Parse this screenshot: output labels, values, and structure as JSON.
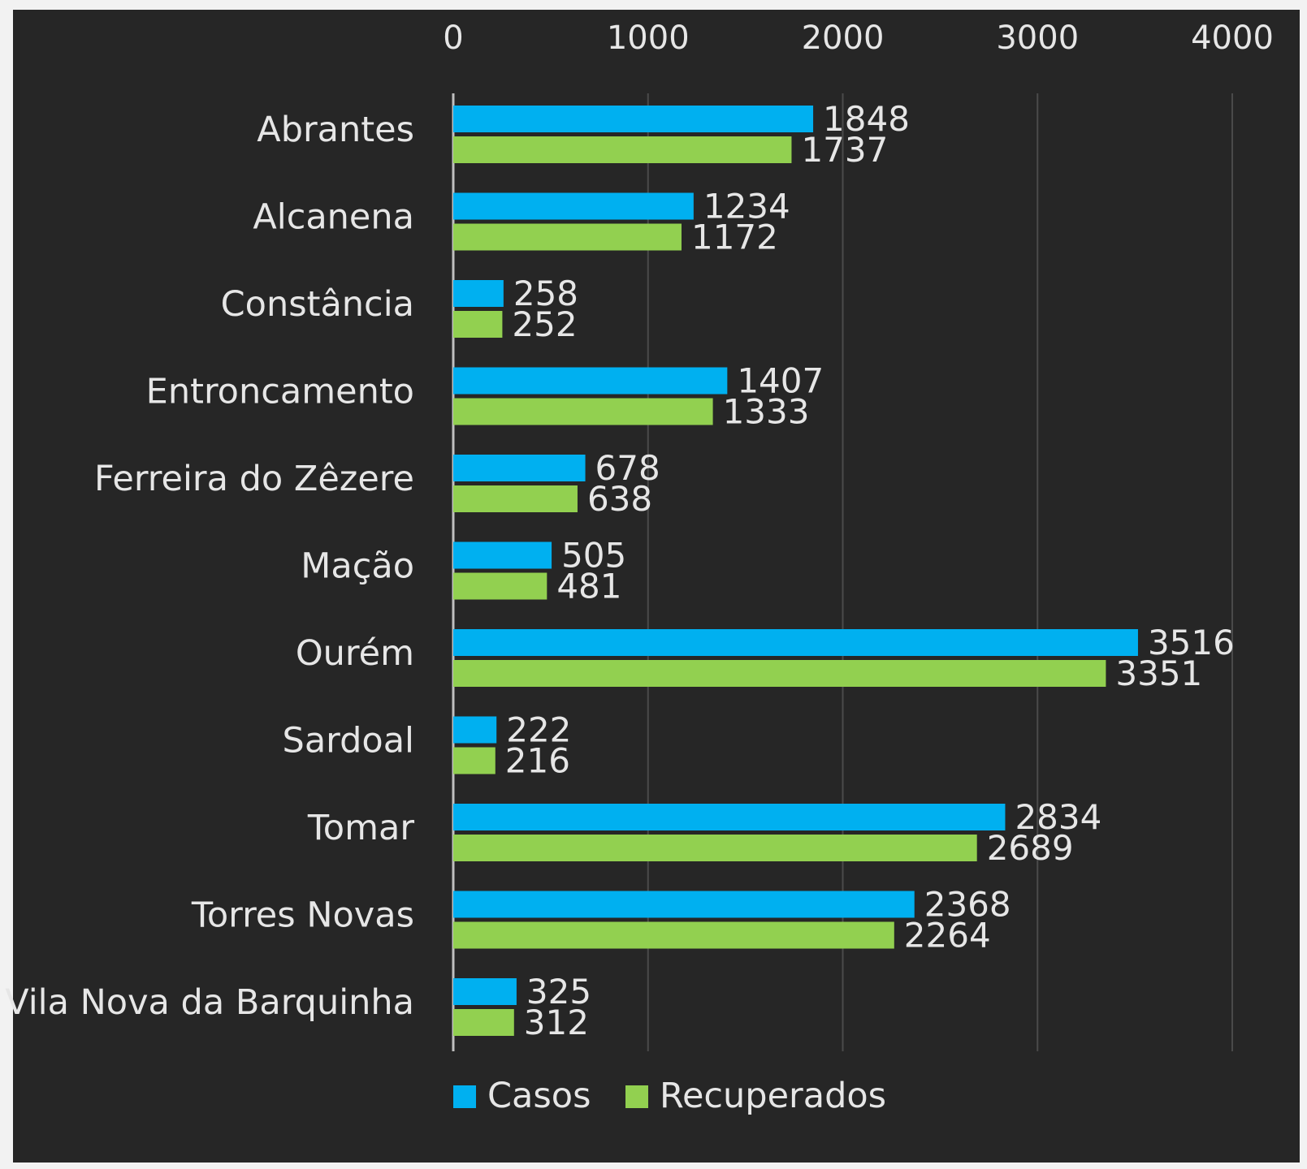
{
  "chart_data": {
    "type": "bar",
    "orientation": "horizontal",
    "categories": [
      "Abrantes",
      "Alcanena",
      "Constância",
      "Entroncamento",
      "Ferreira do Zêzere",
      "Mação",
      "Ourém",
      "Sardoal",
      "Tomar",
      "Torres Novas",
      "Vila Nova da Barquinha"
    ],
    "series": [
      {
        "name": "Casos",
        "color": "#00b0f0",
        "values": [
          1848,
          1234,
          258,
          1407,
          678,
          505,
          3516,
          222,
          2834,
          2368,
          325
        ]
      },
      {
        "name": "Recuperados",
        "color": "#92d050",
        "values": [
          1737,
          1172,
          252,
          1333,
          638,
          481,
          3351,
          216,
          2689,
          2264,
          312
        ]
      }
    ],
    "xlim": [
      0,
      4000
    ],
    "xticks": [
      "0",
      "1000",
      "2000",
      "3000",
      "4000"
    ],
    "x_axis_position": "top",
    "grid": true,
    "legend": "bottom",
    "background": "#262626"
  }
}
